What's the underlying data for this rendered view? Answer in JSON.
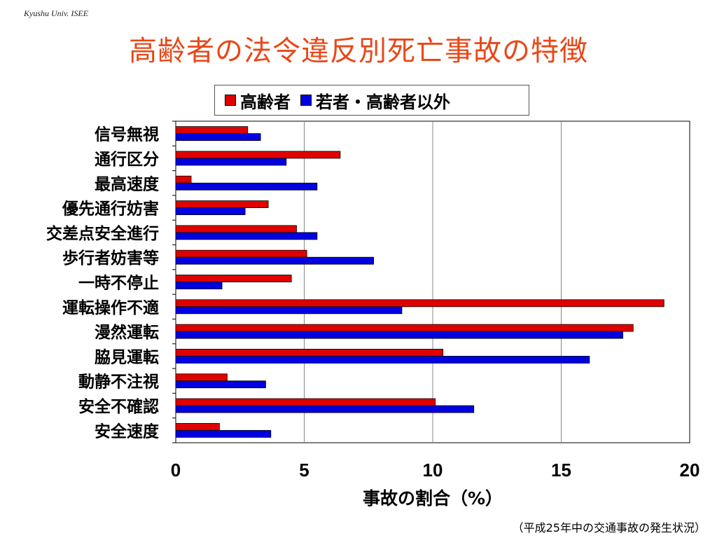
{
  "header": {
    "org": "Kyushu Univ. ISEE",
    "title": "高齢者の法令違反別死亡事故の特徴"
  },
  "footnote": "（平成25年中の交通事故の発生状況）",
  "colors": {
    "title": "#e84818",
    "elderly": "#e00000",
    "others": "#0000e0"
  },
  "chart_data": {
    "type": "bar",
    "orientation": "horizontal",
    "title": "",
    "xlabel": "事故の割合（%）",
    "ylabel": "",
    "xlim": [
      0,
      20
    ],
    "xticks": [
      0,
      5,
      10,
      15,
      20
    ],
    "grid": "vertical",
    "legend_position": "top",
    "categories": [
      "信号無視",
      "通行区分",
      "最高速度",
      "優先通行妨害",
      "交差点安全進行",
      "歩行者妨害等",
      "一時不停止",
      "運転操作不適",
      "漫然運転",
      "脇見運転",
      "動静不注視",
      "安全不確認",
      "安全速度"
    ],
    "series": [
      {
        "name": "高齢者",
        "color": "#e00000",
        "values": [
          2.8,
          6.4,
          0.6,
          3.6,
          4.7,
          5.1,
          4.5,
          19.0,
          17.8,
          10.4,
          2.0,
          10.1,
          1.7
        ]
      },
      {
        "name": "若者・高齢者以外",
        "color": "#0000e0",
        "values": [
          3.3,
          4.3,
          5.5,
          2.7,
          5.5,
          7.7,
          1.8,
          8.8,
          17.4,
          16.1,
          3.5,
          11.6,
          3.7
        ]
      }
    ]
  }
}
